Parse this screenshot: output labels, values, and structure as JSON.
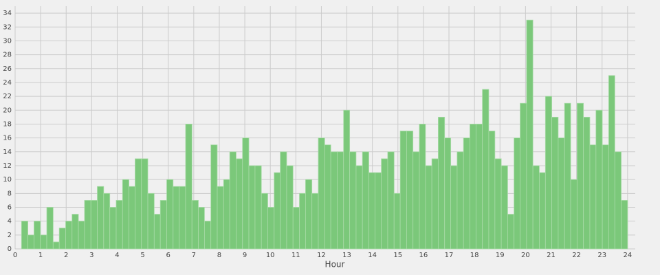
{
  "chart_data": {
    "type": "histogram",
    "xlabel": "Hour",
    "color": "#7bc87a",
    "bins": [
      0.25,
      0.5,
      0.74,
      0.99,
      1.24,
      1.49,
      1.73,
      1.98,
      2.23,
      2.48,
      2.72,
      2.97,
      3.22,
      3.47,
      3.71,
      3.96,
      4.21,
      4.46,
      4.7,
      4.95,
      5.2,
      5.45,
      5.69,
      5.94,
      6.19,
      6.43,
      6.68,
      6.93,
      7.18,
      7.42,
      7.67,
      7.92,
      8.17,
      8.41,
      8.66,
      8.91,
      9.16,
      9.4,
      9.65,
      9.9,
      10.15,
      10.39,
      10.64,
      10.89,
      11.14,
      11.38,
      11.63,
      11.88,
      12.13,
      12.37,
      12.62,
      12.87,
      13.11,
      13.36,
      13.61,
      13.86,
      14.1,
      14.35,
      14.6,
      14.85,
      15.09,
      15.34,
      15.59,
      15.84,
      16.08,
      16.33,
      16.58,
      16.83,
      17.07,
      17.32,
      17.57,
      17.82,
      18.06,
      18.31,
      18.56,
      18.8,
      19.05,
      19.3,
      19.55,
      19.79,
      20.04,
      20.29,
      20.54,
      20.78,
      21.03,
      21.28,
      21.53,
      21.77,
      22.02,
      22.27,
      22.52,
      22.76,
      23.01,
      23.26,
      23.5,
      23.75,
      24
    ],
    "values": [
      4,
      2,
      4,
      2,
      6,
      1,
      3,
      4,
      5,
      4,
      7,
      7,
      9,
      8,
      6,
      7,
      10,
      9,
      13,
      13,
      8,
      5,
      7,
      10,
      9,
      9,
      18,
      7,
      6,
      4,
      15,
      9,
      10,
      14,
      13,
      16,
      12,
      12,
      8,
      6,
      11,
      14,
      12,
      6,
      8,
      10,
      8,
      16,
      15,
      14,
      14,
      20,
      14,
      12,
      14,
      11,
      11,
      13,
      14,
      8,
      17,
      17,
      14,
      18,
      12,
      13,
      19,
      16,
      12,
      14,
      16,
      18,
      18,
      23,
      17,
      13,
      12,
      5,
      16,
      21,
      33,
      12,
      11,
      22,
      19,
      16,
      21,
      10,
      21,
      19,
      15,
      20,
      15,
      25,
      14,
      7
    ],
    "xlim": [
      0,
      24.3
    ],
    "ylim": [
      0,
      35
    ],
    "xticks": [
      0,
      1,
      2,
      3,
      4,
      5,
      6,
      7,
      8,
      9,
      10,
      11,
      12,
      13,
      14,
      15,
      16,
      17,
      18,
      19,
      20,
      21,
      22,
      23,
      24
    ],
    "yticks": [
      0,
      2,
      4,
      6,
      8,
      10,
      12,
      14,
      16,
      18,
      20,
      22,
      24,
      26,
      28,
      30,
      32,
      34
    ],
    "grid": true
  }
}
